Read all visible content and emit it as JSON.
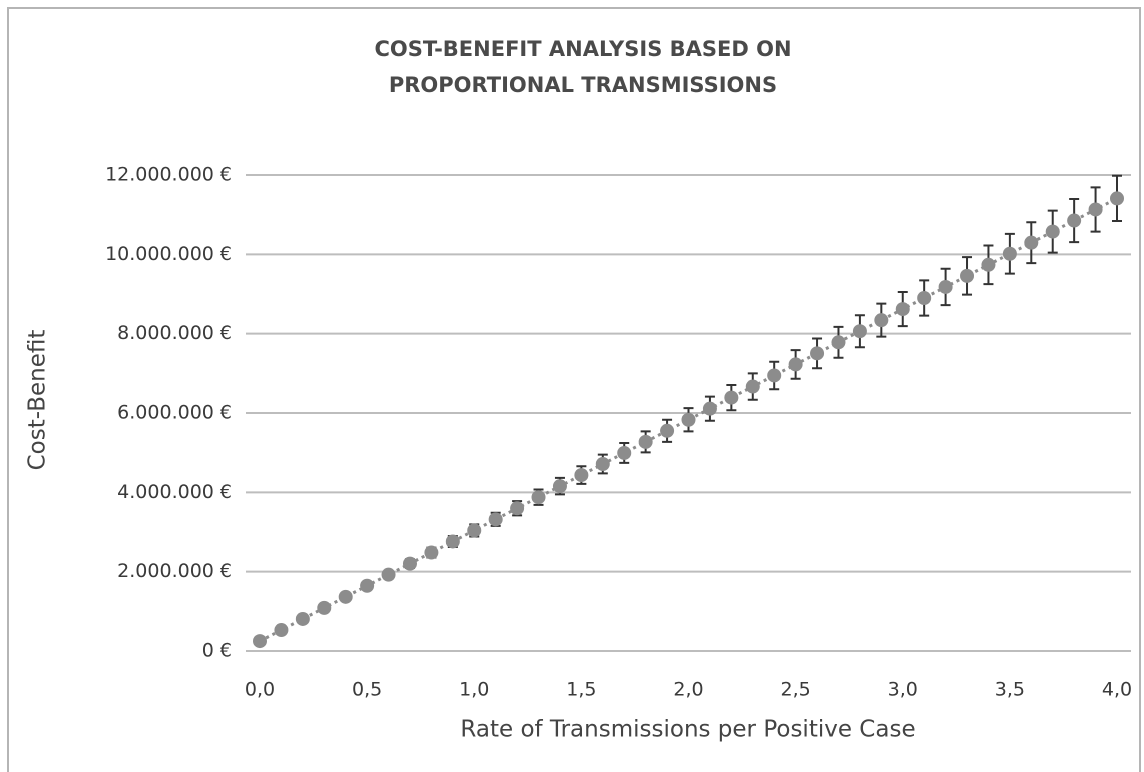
{
  "chart_data": {
    "type": "scatter",
    "title": [
      "COST-BENEFIT ANALYSIS BASED ON",
      "PROPORTIONAL TRANSMISSIONS"
    ],
    "x_label": "Rate of Transmissions per Positive Case",
    "y_label": "Cost-Benefit",
    "x": [
      0,
      0.1,
      0.2,
      0.3,
      0.4,
      0.5,
      0.6,
      0.7,
      0.8,
      0.9,
      1.0,
      1.1,
      1.2,
      1.3,
      1.4,
      1.5,
      1.6,
      1.7,
      1.8,
      1.9,
      2.0,
      2.1,
      2.2,
      2.3,
      2.4,
      2.5,
      2.6,
      2.7,
      2.8,
      2.9,
      3.0,
      3.1,
      3.2,
      3.3,
      3.4,
      3.5,
      3.6,
      3.7,
      3.8,
      3.9,
      4.0
    ],
    "series": [
      {
        "color": "#8c8c8c",
        "error_color": "#333333",
        "values": [
          250000,
          529000,
          808000,
          1087000,
          1366000,
          1645000,
          1924000,
          2203000,
          2482000,
          2761000,
          3040000,
          3319000,
          3598000,
          3877000,
          4156000,
          4435000,
          4714000,
          4993000,
          5272000,
          5551000,
          5830000,
          6109000,
          6388000,
          6667000,
          6946000,
          7225000,
          7504000,
          7783000,
          8062000,
          8341000,
          8620000,
          8899000,
          9178000,
          9457000,
          9736000,
          10015000,
          10294000,
          10573000,
          10852000,
          11131000,
          11410000
        ],
        "errors": [
          13000,
          26000,
          40000,
          54000,
          68000,
          82000,
          96000,
          110000,
          124000,
          138000,
          152000,
          166000,
          180000,
          194000,
          208000,
          222000,
          236000,
          250000,
          264000,
          278000,
          292000,
          305000,
          319000,
          333000,
          347000,
          361000,
          375000,
          389000,
          403000,
          417000,
          431000,
          445000,
          459000,
          473000,
          487000,
          501000,
          515000,
          529000,
          543000,
          557000,
          571000
        ]
      }
    ],
    "xlim": [
      0,
      4
    ],
    "xticks": [
      {
        "value": 0,
        "label": "0,0"
      },
      {
        "value": 0.5,
        "label": "0,5"
      },
      {
        "value": 1,
        "label": "1,0"
      },
      {
        "value": 1.5,
        "label": "1,5"
      },
      {
        "value": 2,
        "label": "2,0"
      },
      {
        "value": 2.5,
        "label": "2,5"
      },
      {
        "value": 3,
        "label": "3,0"
      },
      {
        "value": 3.5,
        "label": "3,5"
      },
      {
        "value": 4,
        "label": "4,0"
      }
    ],
    "ylim": [
      0,
      12000000
    ],
    "yticks": [
      {
        "value": 0,
        "label": "0 €"
      },
      {
        "value": 2000000,
        "label": "2.000.000 €"
      },
      {
        "value": 4000000,
        "label": "4.000.000 €"
      },
      {
        "value": 6000000,
        "label": "6.000.000 €"
      },
      {
        "value": 8000000,
        "label": "8.000.000 €"
      },
      {
        "value": 10000000,
        "label": "10.000.000 €"
      },
      {
        "value": 12000000,
        "label": "12.000.000 €"
      }
    ],
    "grid": true
  }
}
